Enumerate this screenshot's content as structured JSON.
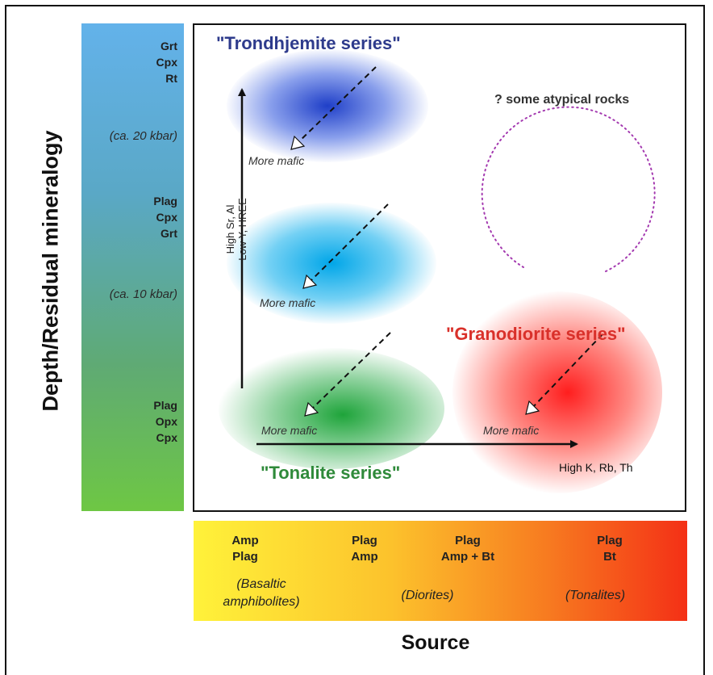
{
  "y_axis_title": "Depth/Residual mineralogy",
  "x_axis_title": "Source",
  "depth_scale": {
    "mineral_groups": [
      [
        "Grt",
        "Cpx",
        "Rt"
      ],
      [
        "Plag",
        "Cpx",
        "Grt"
      ],
      [
        "Plag",
        "Opx",
        "Cpx"
      ]
    ],
    "pressures": [
      "(ca. 20 kbar)",
      "(ca. 10 kbar)"
    ],
    "gradient_colors": [
      "#63b2ea",
      "#5aa8c6",
      "#5faa74",
      "#6ec744"
    ]
  },
  "source_scale": {
    "mineral_groups": [
      [
        "Amp",
        "Plag"
      ],
      [
        "Plag",
        "Amp"
      ],
      [
        "Plag",
        "Amp + Bt"
      ],
      [
        "Plag",
        "Bt"
      ]
    ],
    "rock_types": [
      [
        "(Basaltic",
        "amphibolites)"
      ],
      [
        "(Diorites)"
      ],
      [
        "(Tonalites)"
      ]
    ],
    "gradient_colors": [
      "#fff23a",
      "#fcc22c",
      "#f77a20",
      "#f43016"
    ]
  },
  "diagram": {
    "vertical_arrow_label": [
      "High Sr, Al",
      "Low Y, HREE"
    ],
    "horizontal_arrow_label": "High K, Rb, Th",
    "atypical_label": "? some atypical rocks",
    "series": [
      {
        "name": "\"Trondhjemite series\"",
        "color": "#2e3b8c",
        "blob_color": "#1f3fc8",
        "trend_label": "More mafic"
      },
      {
        "name": "",
        "color": "#00a6e0",
        "blob_color": "#00a6e8",
        "trend_label": "More mafic"
      },
      {
        "name": "\"Tonalite series\"",
        "color": "#2f8a3a",
        "blob_color": "#1ea43a",
        "trend_label": "More mafic"
      },
      {
        "name": "\"Granodiorite series\"",
        "color": "#d9302a",
        "blob_color": "#ff1e1e",
        "trend_label": "More mafic"
      }
    ],
    "atypical_circle_color": "#a43ab0"
  }
}
